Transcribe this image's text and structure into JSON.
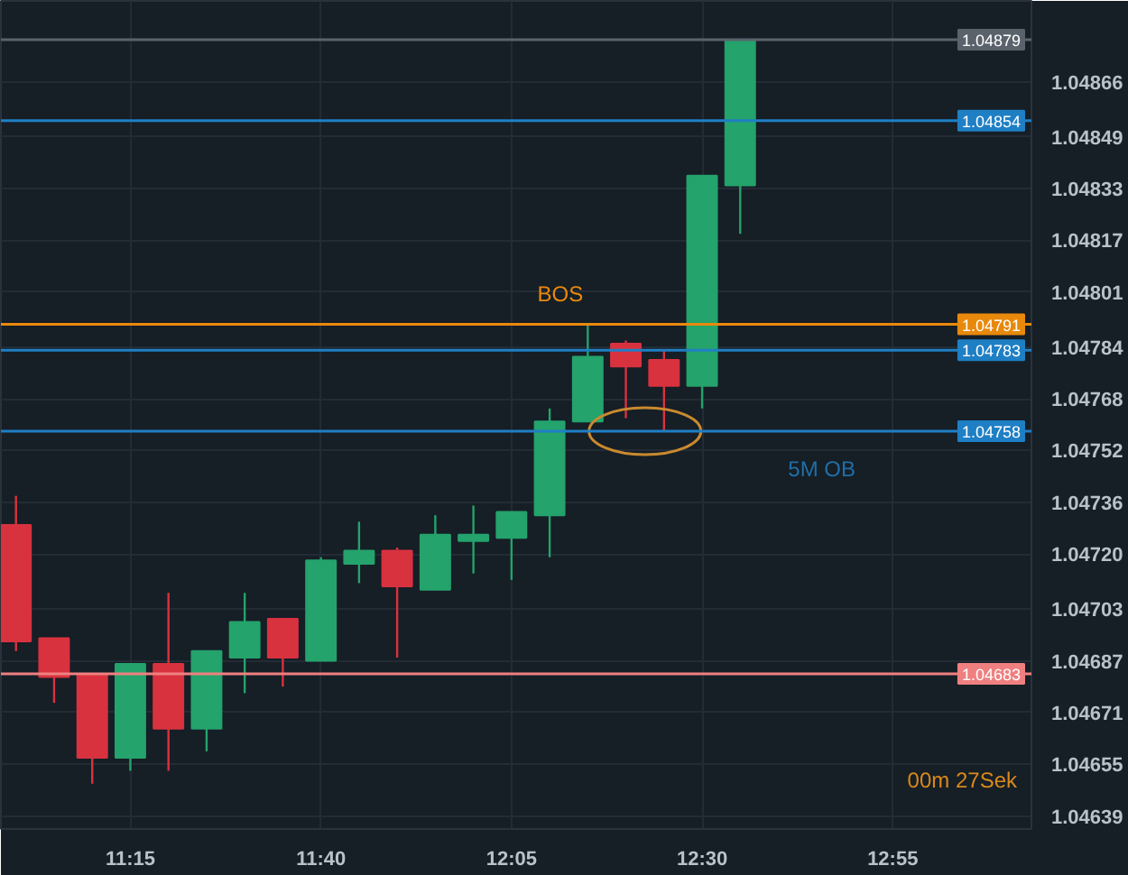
{
  "chart_data": {
    "type": "candlestick",
    "x": [
      11.0,
      11.0833,
      11.1667,
      11.25,
      11.3333,
      11.4167,
      11.5,
      11.5833,
      11.6667,
      11.75,
      11.8333,
      11.9167,
      12.0,
      12.0833,
      12.1667,
      12.25,
      12.3333,
      12.4167,
      12.5,
      12.5833
    ],
    "ohlc": [
      [
        1.04729,
        1.04738,
        1.0469,
        1.04693
      ],
      [
        1.04694,
        1.04694,
        1.04674,
        1.04682
      ],
      [
        1.04683,
        1.04683,
        1.04649,
        1.04657
      ],
      [
        1.04657,
        1.04686,
        1.04653,
        1.04686
      ],
      [
        1.04686,
        1.04708,
        1.04653,
        1.04666
      ],
      [
        1.04666,
        1.0469,
        1.04659,
        1.0469
      ],
      [
        1.04688,
        1.04708,
        1.04677,
        1.04699
      ],
      [
        1.047,
        1.047,
        1.04679,
        1.04688
      ],
      [
        1.04687,
        1.04719,
        1.04687,
        1.04718
      ],
      [
        1.04717,
        1.0473,
        1.04711,
        1.04721
      ],
      [
        1.04721,
        1.04722,
        1.04688,
        1.0471
      ],
      [
        1.04709,
        1.04732,
        1.04709,
        1.04726
      ],
      [
        1.04724,
        1.04735,
        1.04714,
        1.04726
      ],
      [
        1.04725,
        1.04733,
        1.04712,
        1.04733
      ],
      [
        1.04732,
        1.04765,
        1.04719,
        1.04761
      ],
      [
        1.04761,
        1.04791,
        1.04761,
        1.04781
      ],
      [
        1.04785,
        1.04786,
        1.04762,
        1.04778
      ],
      [
        1.0478,
        1.04783,
        1.04758,
        1.04772
      ],
      [
        1.04772,
        1.04837,
        1.04765,
        1.04837
      ],
      [
        1.04834,
        1.04879,
        1.04819,
        1.04879
      ]
    ],
    "colors": [
      "#d9323f",
      "#d9323f",
      "#d9323f",
      "#24a36c",
      "#d9323f",
      "#24a36c",
      "#24a36c",
      "#d9323f",
      "#24a36c",
      "#24a36c",
      "#d9323f",
      "#24a36c",
      "#24a36c",
      "#24a36c",
      "#24a36c",
      "#24a36c",
      "#d9323f",
      "#d9323f",
      "#24a36c",
      "#24a36c"
    ],
    "xlim": [
      10.967,
      13.22
    ],
    "xticks": [
      {
        "value": 11.25,
        "label": "11:15"
      },
      {
        "value": 11.6667,
        "label": "11:40"
      },
      {
        "value": 12.0833,
        "label": "12:05"
      },
      {
        "value": 12.5,
        "label": "12:30"
      },
      {
        "value": 12.9167,
        "label": "12:55"
      }
    ],
    "ylim": [
      1.04635,
      1.04891
    ],
    "yticks": [
      1.04639,
      1.04655,
      1.04671,
      1.04687,
      1.04703,
      {
        "value": 1.0472,
        "label": "1.04720"
      },
      1.04736,
      1.04752,
      1.04768,
      1.04784,
      1.04801,
      1.04817,
      1.04833,
      1.04849,
      1.04866
    ],
    "grid": true,
    "ref_lines": [
      {
        "axis": "y",
        "value": 1.04879,
        "label": "1.04879",
        "color": "#5a636c"
      },
      {
        "axis": "y",
        "value": 1.04854,
        "label": "1.04854",
        "color": "#1f7fc4"
      },
      {
        "axis": "y",
        "value": 1.04791,
        "label": "1.04791",
        "color": "#e8890c"
      },
      {
        "axis": "y",
        "value": 1.04783,
        "label": "1.04783",
        "color": "#1f7fc4"
      },
      {
        "axis": "y",
        "value": 1.04758,
        "label": "1.04758",
        "color": "#1f7fc4"
      },
      {
        "axis": "y",
        "value": 1.04683,
        "label": "1.04683",
        "color": "#f08080"
      }
    ],
    "annotations": [
      {
        "text": "BOS",
        "x": 12.19,
        "y": 1.04791
      },
      "5M OB",
      "00m 27Sek"
    ]
  }
}
